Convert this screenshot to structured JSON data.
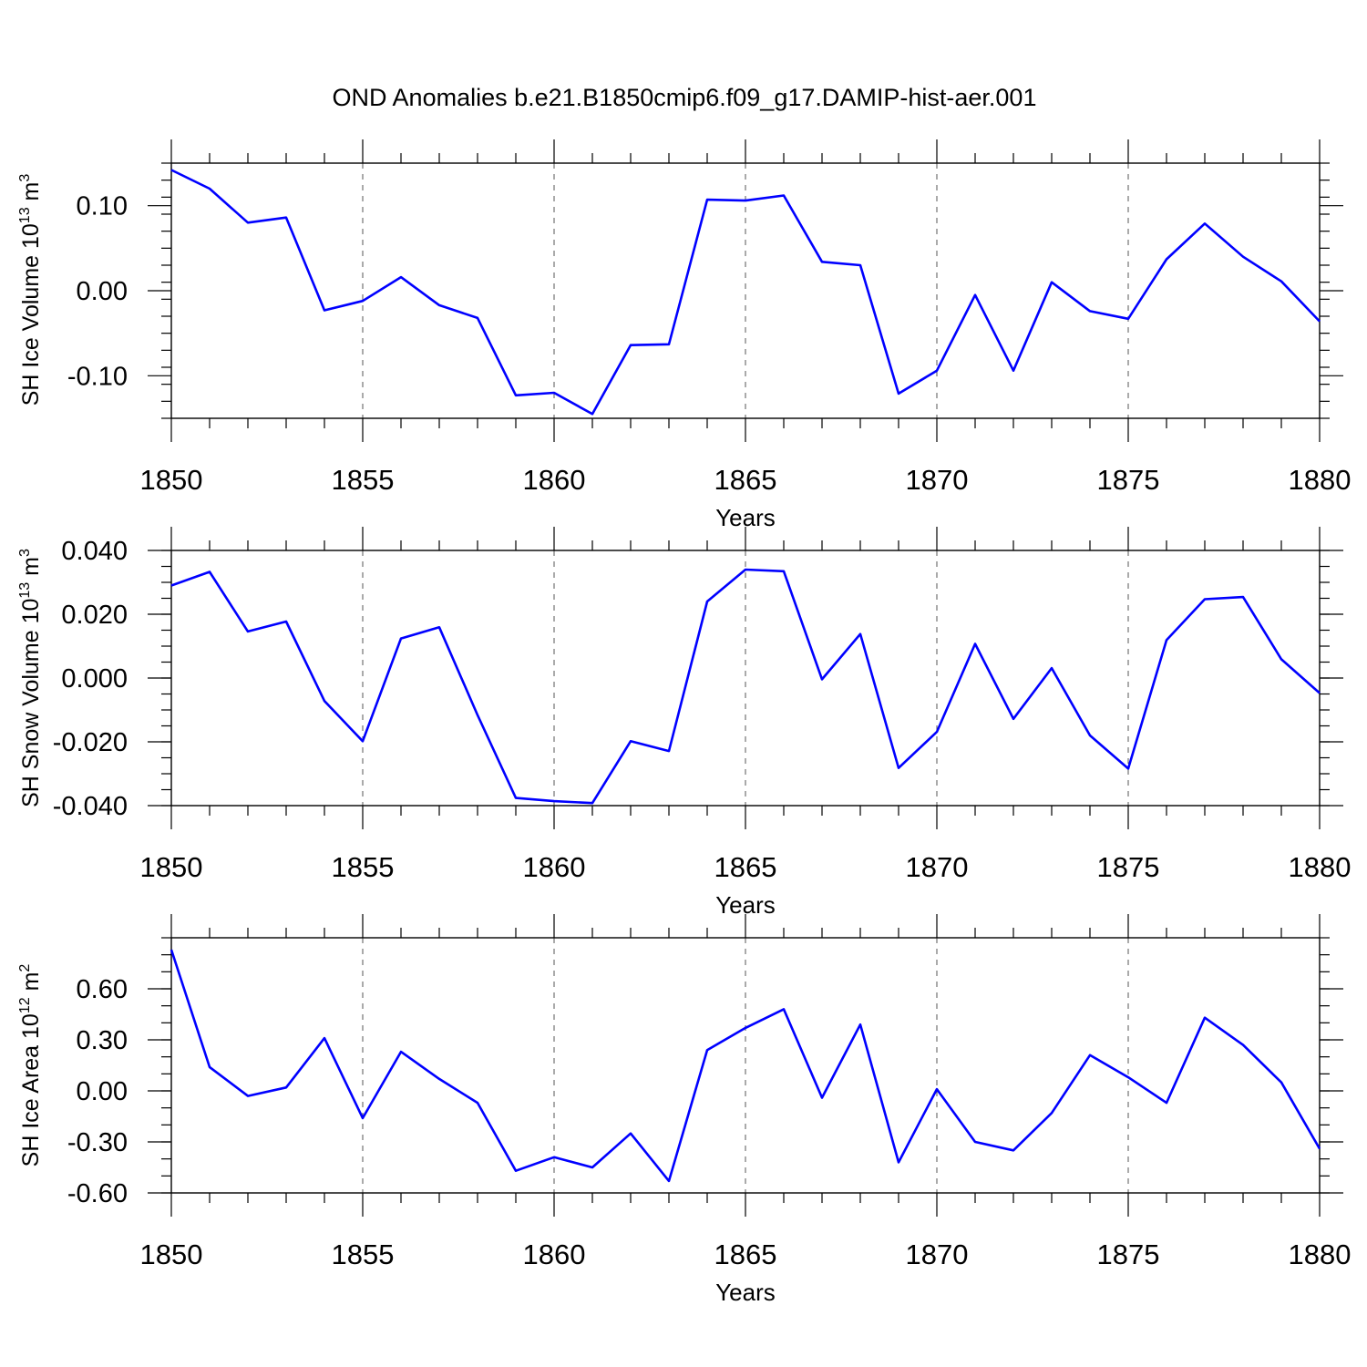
{
  "title": "OND Anomalies b.e21.B1850cmip6.f09_g17.DAMIP-hist-aer.001",
  "line_color": "#0000ff",
  "chart_data": [
    {
      "type": "line",
      "title": "OND Anomalies b.e21.B1850cmip6.f09_g17.DAMIP-hist-aer.001",
      "xlabel": "Years",
      "ylabel_parts": [
        "SH Ice Volume 10",
        "13",
        " m",
        "3"
      ],
      "xlim": [
        1850,
        1880
      ],
      "ylim": [
        -0.15,
        0.15
      ],
      "x_ticks": [
        "1850",
        "1855",
        "1860",
        "1865",
        "1870",
        "1875",
        "1880"
      ],
      "y_ticks": [
        {
          "value": 0.1,
          "label": "0.10"
        },
        {
          "value": 0.0,
          "label": "0.00"
        },
        {
          "value": -0.1,
          "label": "-0.10"
        }
      ],
      "y_minor_step": 0.02,
      "grid": "vertical dashed",
      "series": [
        {
          "name": "SH Ice Volume",
          "x": [
            1850,
            1851,
            1852,
            1853,
            1854,
            1855,
            1856,
            1857,
            1858,
            1859,
            1860,
            1861,
            1862,
            1863,
            1864,
            1865,
            1866,
            1867,
            1868,
            1869,
            1870,
            1871,
            1872,
            1873,
            1874,
            1875,
            1876,
            1877,
            1878,
            1879,
            1880
          ],
          "values": [
            0.142,
            0.12,
            0.08,
            0.086,
            -0.023,
            -0.012,
            0.016,
            -0.017,
            -0.032,
            -0.123,
            -0.12,
            -0.145,
            -0.064,
            -0.063,
            0.107,
            0.106,
            0.112,
            0.034,
            0.03,
            -0.121,
            -0.094,
            -0.005,
            -0.094,
            0.01,
            -0.024,
            -0.033,
            0.037,
            0.079,
            0.04,
            0.011,
            -0.036
          ]
        }
      ]
    },
    {
      "type": "line",
      "xlabel": "Years",
      "ylabel_parts": [
        "SH Snow Volume 10",
        "13",
        " m",
        "3"
      ],
      "xlim": [
        1850,
        1880
      ],
      "ylim": [
        -0.04,
        0.04
      ],
      "x_ticks": [
        "1850",
        "1855",
        "1860",
        "1865",
        "1870",
        "1875",
        "1880"
      ],
      "y_ticks": [
        {
          "value": 0.04,
          "label": "0.040"
        },
        {
          "value": 0.02,
          "label": "0.020"
        },
        {
          "value": 0.0,
          "label": "0.000"
        },
        {
          "value": -0.02,
          "label": "-0.020"
        },
        {
          "value": -0.04,
          "label": "-0.040"
        }
      ],
      "y_minor_step": 0.005,
      "grid": "vertical dashed",
      "series": [
        {
          "name": "SH Snow Volume",
          "x": [
            1850,
            1851,
            1852,
            1853,
            1854,
            1855,
            1856,
            1857,
            1858,
            1859,
            1860,
            1861,
            1862,
            1863,
            1864,
            1865,
            1866,
            1867,
            1868,
            1869,
            1870,
            1871,
            1872,
            1873,
            1874,
            1875,
            1876,
            1877,
            1878,
            1879,
            1880
          ],
          "values": [
            0.029,
            0.0333,
            0.0146,
            0.0177,
            -0.0072,
            -0.0198,
            0.0124,
            0.0159,
            -0.0116,
            -0.0376,
            -0.0386,
            -0.0392,
            -0.0198,
            -0.0229,
            0.024,
            0.034,
            0.0335,
            -0.0004,
            0.0138,
            -0.0282,
            -0.0169,
            0.0107,
            -0.0128,
            0.0031,
            -0.018,
            -0.0284,
            0.0119,
            0.0247,
            0.0254,
            0.0059,
            -0.0047
          ]
        }
      ]
    },
    {
      "type": "line",
      "xlabel": "Years",
      "ylabel_parts": [
        "SH Ice Area 10",
        "12",
        " m",
        "2"
      ],
      "xlim": [
        1850,
        1880
      ],
      "ylim": [
        -0.6,
        0.9
      ],
      "x_ticks": [
        "1850",
        "1855",
        "1860",
        "1865",
        "1870",
        "1875",
        "1880"
      ],
      "y_ticks": [
        {
          "value": 0.6,
          "label": "0.60"
        },
        {
          "value": 0.3,
          "label": "0.30"
        },
        {
          "value": 0.0,
          "label": "0.00"
        },
        {
          "value": -0.3,
          "label": "-0.30"
        },
        {
          "value": -0.6,
          "label": "-0.60"
        }
      ],
      "y_minor_step": 0.1,
      "grid": "vertical dashed",
      "series": [
        {
          "name": "SH Ice Area",
          "x": [
            1850,
            1851,
            1852,
            1853,
            1854,
            1855,
            1856,
            1857,
            1858,
            1859,
            1860,
            1861,
            1862,
            1863,
            1864,
            1865,
            1866,
            1867,
            1868,
            1869,
            1870,
            1871,
            1872,
            1873,
            1874,
            1875,
            1876,
            1877,
            1878,
            1879,
            1880
          ],
          "values": [
            0.83,
            0.14,
            -0.03,
            0.02,
            0.31,
            -0.16,
            0.23,
            0.07,
            -0.07,
            -0.47,
            -0.39,
            -0.45,
            -0.25,
            -0.53,
            0.24,
            0.37,
            0.48,
            -0.04,
            0.39,
            -0.42,
            0.01,
            -0.3,
            -0.35,
            -0.13,
            0.21,
            0.08,
            -0.07,
            0.43,
            0.27,
            0.05,
            -0.34
          ]
        }
      ]
    }
  ]
}
